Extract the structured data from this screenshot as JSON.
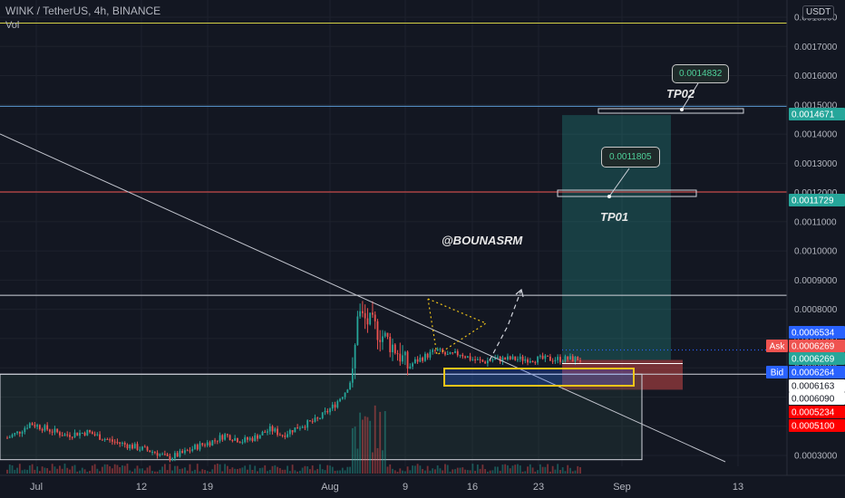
{
  "header": {
    "symbol": "WINK / TetherUS, 4h, BINANCE",
    "vol_label": "Vol",
    "currency": "USDT"
  },
  "watermark": "@BOUNASRM",
  "annotations": {
    "tp01_label": "TP01",
    "tp02_label": "TP02",
    "tp01_callout": "0.0011805",
    "tp02_callout": "0.0014832"
  },
  "colors": {
    "background": "#131722",
    "grid": "#1e222d",
    "up": "#26a69a",
    "down": "#ef5350",
    "yellow_line": "#d4d046",
    "blue_line": "#5b9bd5",
    "red_line": "#ef5350",
    "white_line": "#d1d4dc",
    "long_target_zone": "#26a69a",
    "long_stop_zone": "#ef5350",
    "yellow_box": "#f0c419"
  },
  "chart_data": {
    "type": "candlestick",
    "title": "WINK / TetherUS, 4h, BINANCE",
    "xlabel": "",
    "ylabel": "",
    "x_ticks": [
      "Jul",
      "12",
      "19",
      "Aug",
      "9",
      "16",
      "23",
      "Sep",
      "13"
    ],
    "y_ticks": [
      "0.0003000",
      "0.0004000",
      "0.0005000",
      "0.0006000",
      "0.0007000",
      "0.0008000",
      "0.0009000",
      "0.0010000",
      "0.0011000",
      "0.0012000",
      "0.0013000",
      "0.0014000",
      "0.0015000",
      "0.0016000",
      "0.0017000",
      "0.0018000"
    ],
    "ylim": [
      0.00027,
      0.00185
    ],
    "price_tags": [
      {
        "label": "",
        "value": "0.0014671",
        "color": "#26a69a"
      },
      {
        "label": "",
        "value": "0.0011729",
        "color": "#26a69a"
      },
      {
        "label": "",
        "value": "0.0006534",
        "color": "#2962ff"
      },
      {
        "label": "Ask",
        "value": "0.0006269",
        "color": "#ef5350"
      },
      {
        "label": "",
        "value": "0.0006269",
        "color": "#26a69a"
      },
      {
        "label": "Bid",
        "value": "0.0006264",
        "color": "#2962ff"
      },
      {
        "label": "",
        "value": "0.0006163",
        "color": "#ffffff"
      },
      {
        "label": "",
        "value": "0.0006090",
        "color": "#ffffff"
      },
      {
        "label": "",
        "value": "0.0005234",
        "color": "#ff0000"
      },
      {
        "label": "",
        "value": "0.0005100",
        "color": "#ff0000"
      }
    ],
    "horizontal_levels": [
      {
        "price": 0.00178,
        "color": "yellow"
      },
      {
        "price": 0.001495,
        "color": "blue"
      },
      {
        "price": 0.001202,
        "color": "red"
      },
      {
        "price": 0.000848,
        "color": "white"
      },
      {
        "price": 0.000578,
        "color": "white"
      }
    ],
    "price_path": [
      [
        0.0,
        0.00036
      ],
      [
        0.02,
        0.00038
      ],
      [
        0.04,
        0.00041
      ],
      [
        0.07,
        0.00039
      ],
      [
        0.1,
        0.00037
      ],
      [
        0.14,
        0.00038
      ],
      [
        0.18,
        0.00035
      ],
      [
        0.22,
        0.00033
      ],
      [
        0.26,
        0.00031
      ],
      [
        0.28,
        0.00029
      ],
      [
        0.31,
        0.00031
      ],
      [
        0.33,
        0.00033
      ],
      [
        0.36,
        0.00035
      ],
      [
        0.38,
        0.00037
      ],
      [
        0.41,
        0.00035
      ],
      [
        0.43,
        0.00036
      ],
      [
        0.46,
        0.00039
      ],
      [
        0.48,
        0.00037
      ],
      [
        0.51,
        0.0004
      ],
      [
        0.54,
        0.00042
      ],
      [
        0.57,
        0.00047
      ],
      [
        0.59,
        0.00052
      ],
      [
        0.605,
        0.00058
      ],
      [
        0.61,
        0.0008
      ],
      [
        0.62,
        0.00077
      ],
      [
        0.64,
        0.00074
      ],
      [
        0.66,
        0.0007
      ],
      [
        0.68,
        0.00066
      ],
      [
        0.7,
        0.0006
      ],
      [
        0.71,
        0.00062
      ],
      [
        0.73,
        0.00064
      ],
      [
        0.75,
        0.00066
      ],
      [
        0.77,
        0.00064
      ],
      [
        0.79,
        0.00065
      ],
      [
        0.81,
        0.00063
      ],
      [
        0.83,
        0.00062
      ],
      [
        0.85,
        0.00063
      ]
    ]
  }
}
